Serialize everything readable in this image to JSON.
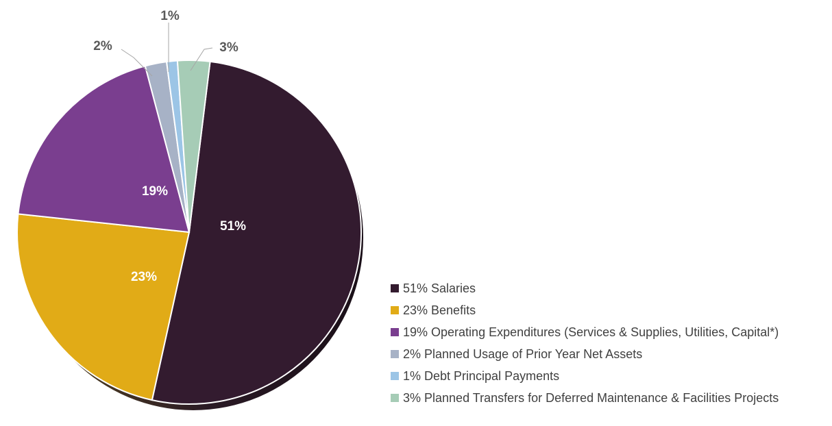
{
  "chart_data": {
    "type": "pie",
    "title": "",
    "legend_position": "right",
    "slices": [
      {
        "value": 51,
        "label": "51%",
        "legend": "51% Salaries",
        "color": "#331b2f",
        "label_color": "#ffffff",
        "label_style": "inside"
      },
      {
        "value": 23,
        "label": "23%",
        "legend": "23% Benefits",
        "color": "#e1ab17",
        "label_color": "#ffffff",
        "label_style": "inside"
      },
      {
        "value": 19,
        "label": "19%",
        "legend": "19% Operating Expenditures (Services & Supplies, Utilities, Capital*)",
        "color": "#7a3e8f",
        "label_color": "#ffffff",
        "label_style": "inside"
      },
      {
        "value": 2,
        "label": "2%",
        "legend": "2% Planned Usage of Prior Year Net Assets",
        "color": "#a7b2c6",
        "label_color": "#595959",
        "label_style": "leader"
      },
      {
        "value": 1,
        "label": "1%",
        "legend": "1% Debt Principal Payments",
        "color": "#9cc5e6",
        "label_color": "#595959",
        "label_style": "leader"
      },
      {
        "value": 3,
        "label": "3%",
        "legend": "3% Planned Transfers for Deferred Maintenance & Facilities Projects",
        "color": "#a6ccb6",
        "label_color": "#595959",
        "label_style": "leader"
      }
    ]
  }
}
